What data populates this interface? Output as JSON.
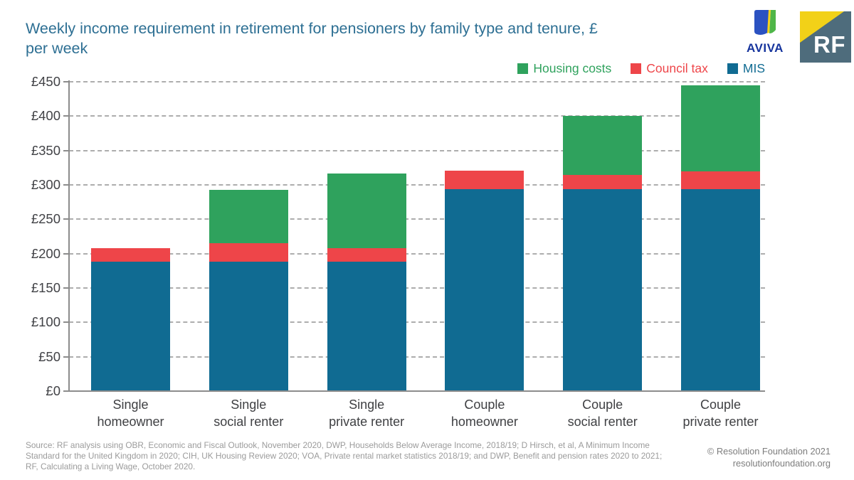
{
  "header": {
    "title_lines": [
      "Weekly income requirement in retirement for pensioners by family type and tenure, £",
      "per week"
    ],
    "aviva_logo_text": "AVIVA",
    "rf_logo_text": "RF"
  },
  "legend": [
    {
      "label": "Housing costs",
      "color": "#2fa25d"
    },
    {
      "label": "Council tax",
      "color": "#ee4549"
    },
    {
      "label": "MIS",
      "color": "#106b92"
    }
  ],
  "chart_data": {
    "type": "bar",
    "stacked": true,
    "title": "Weekly income requirement in retirement for pensioners by family type and tenure, £ per week",
    "categories": [
      [
        "Single",
        "homeowner"
      ],
      [
        "Single",
        "social renter"
      ],
      [
        "Single",
        "private renter"
      ],
      [
        "Couple",
        "homeowner"
      ],
      [
        "Couple",
        "social renter"
      ],
      [
        "Couple",
        "private renter"
      ]
    ],
    "series": [
      {
        "name": "MIS",
        "color": "#106b92",
        "values": [
          188,
          188,
          188,
          294,
          294,
          294
        ]
      },
      {
        "name": "Council tax",
        "color": "#ee4549",
        "values": [
          20,
          27,
          20,
          27,
          20,
          26
        ]
      },
      {
        "name": "Housing costs",
        "color": "#2fa25d",
        "values": [
          0,
          78,
          109,
          0,
          86,
          125
        ]
      }
    ],
    "stack_totals": [
      208,
      293,
      317,
      321,
      400,
      445
    ],
    "ylim": [
      0,
      450
    ],
    "ytick_step": 50,
    "ytick_labels": [
      "£0",
      "£50",
      "£100",
      "£150",
      "£200",
      "£250",
      "£300",
      "£350",
      "£400",
      "£450"
    ],
    "xlabel": "",
    "ylabel": "£ per week",
    "grid": "horizontal-dashed",
    "legend_position": "top-right"
  },
  "footer": {
    "source_lines": [
      "Source: RF analysis using OBR, Economic and Fiscal Outlook, November 2020, DWP, Households Below Average Income, 2018/19; D Hirsch, et al, A Minimum Income",
      "Standard for the United Kingdom in 2020; CIH, UK Housing Review 2020; VOA, Private rental market statistics 2018/19; and DWP, Benefit and pension rates 2020 to 2021;",
      "RF, Calculating a Living Wage, October 2020."
    ],
    "copyright": "© Resolution Foundation 2021",
    "website": "resolutionfoundation.org"
  }
}
